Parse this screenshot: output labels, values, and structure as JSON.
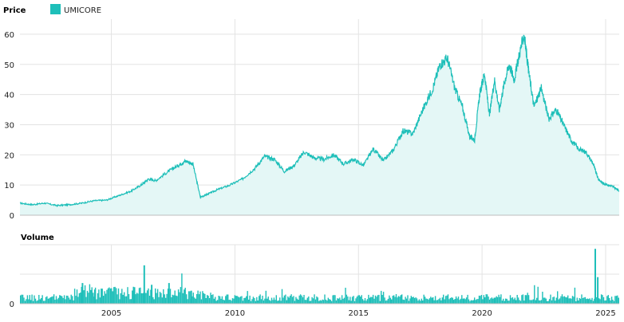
{
  "chart_data": [
    {
      "type": "area",
      "title": "Price",
      "legend": [
        {
          "label": "UMICORE",
          "color": "#1ebfb9"
        }
      ],
      "legend_placement": "top-left",
      "x_range": [
        2001.3,
        2025.55
      ],
      "x_ticks": [
        2005,
        2010,
        2015,
        2020,
        2025
      ],
      "ylim": [
        0,
        65
      ],
      "y_ticks": [
        0,
        10,
        20,
        30,
        40,
        50,
        60
      ],
      "grid": true,
      "line_color": "#1ebfb9",
      "fill_color": "#e4f7f6",
      "series": [
        {
          "name": "UMICORE",
          "x": [
            2001.3,
            2001.8,
            2002.3,
            2002.8,
            2003.3,
            2003.8,
            2004.3,
            2004.8,
            2005.3,
            2005.8,
            2006.2,
            2006.5,
            2006.8,
            2007.3,
            2007.7,
            2008.0,
            2008.3,
            2008.6,
            2008.9,
            2009.3,
            2009.8,
            2010.3,
            2010.8,
            2011.2,
            2011.6,
            2012.0,
            2012.4,
            2012.8,
            2013.2,
            2013.6,
            2014.0,
            2014.4,
            2014.8,
            2015.2,
            2015.6,
            2016.0,
            2016.4,
            2016.8,
            2017.2,
            2017.6,
            2018.0,
            2018.3,
            2018.6,
            2018.9,
            2019.2,
            2019.5,
            2019.7,
            2019.9,
            2020.1,
            2020.3,
            2020.5,
            2020.7,
            2020.9,
            2021.1,
            2021.3,
            2021.5,
            2021.7,
            2021.9,
            2022.1,
            2022.4,
            2022.7,
            2023.0,
            2023.3,
            2023.6,
            2023.9,
            2024.2,
            2024.5,
            2024.7,
            2024.9,
            2025.1,
            2025.3,
            2025.55
          ],
          "values": [
            4.0,
            3.5,
            4.0,
            3.2,
            3.5,
            4.0,
            4.8,
            5.0,
            6.5,
            8.0,
            10.0,
            12.0,
            11.5,
            14.5,
            16.5,
            18.0,
            17.0,
            6.0,
            7.0,
            8.5,
            10.0,
            12.0,
            15.5,
            19.5,
            18.5,
            14.5,
            16.5,
            21.0,
            19.0,
            18.5,
            20.0,
            17.0,
            18.5,
            16.5,
            22.0,
            18.0,
            21.5,
            28.0,
            27.0,
            35.0,
            42.0,
            50.0,
            52.0,
            42.0,
            36.0,
            26.0,
            25.0,
            40.0,
            47.0,
            33.0,
            45.0,
            35.0,
            44.0,
            50.0,
            45.0,
            53.0,
            60.0,
            47.0,
            36.0,
            42.0,
            32.0,
            35.0,
            30.0,
            25.0,
            22.0,
            21.0,
            17.0,
            12.0,
            10.5,
            10.0,
            9.5,
            8.0
          ]
        }
      ]
    },
    {
      "type": "bar",
      "title": "Volume",
      "x_range": [
        2001.3,
        2025.55
      ],
      "x_ticks": [
        2005,
        2010,
        2015,
        2020,
        2025
      ],
      "x_tick_labels": [
        "2005",
        "2010",
        "2015",
        "2020",
        "2025"
      ],
      "y_ticks": [
        0
      ],
      "ylim": [
        0,
        1
      ],
      "grid": true,
      "bar_color": "#1ebfb9",
      "baseline_level": 0.1,
      "spikes": [
        {
          "x": 2003.8,
          "value": 0.35
        },
        {
          "x": 2004.3,
          "value": 0.24
        },
        {
          "x": 2005.9,
          "value": 0.28
        },
        {
          "x": 2006.3,
          "value": 0.65
        },
        {
          "x": 2006.6,
          "value": 0.32
        },
        {
          "x": 2007.3,
          "value": 0.35
        },
        {
          "x": 2008.2,
          "value": 0.22
        },
        {
          "x": 2024.55,
          "value": 0.93
        },
        {
          "x": 2024.65,
          "value": 0.45
        }
      ]
    }
  ]
}
